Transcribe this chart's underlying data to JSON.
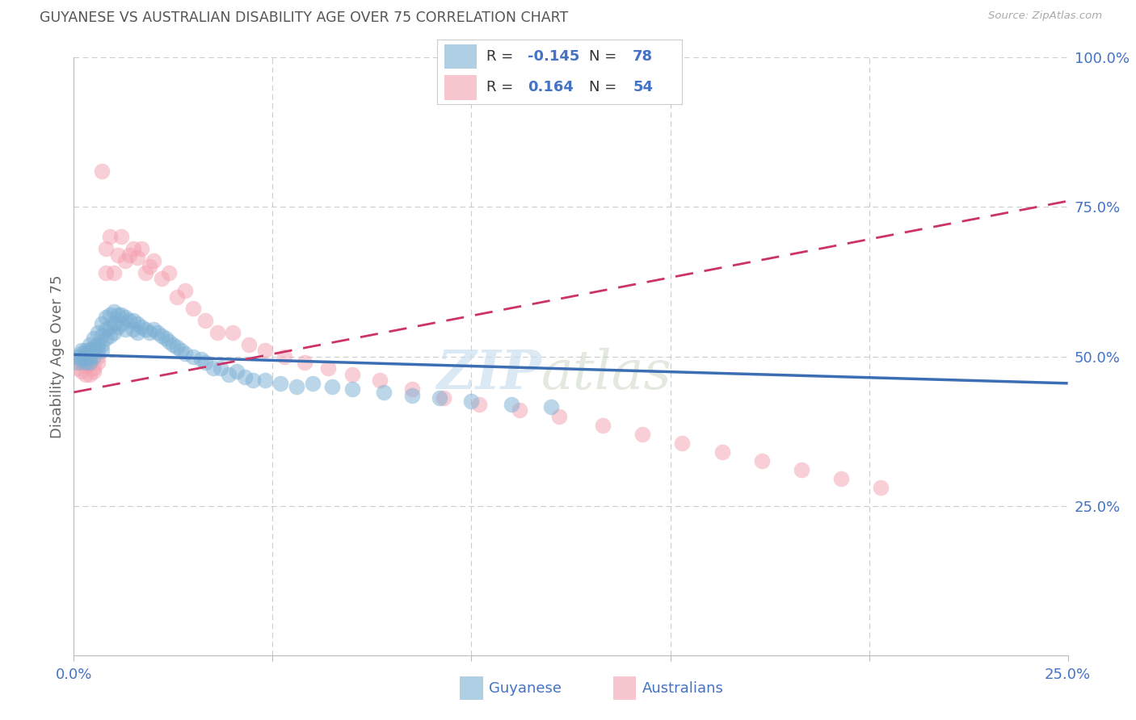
{
  "title": "GUYANESE VS AUSTRALIAN DISABILITY AGE OVER 75 CORRELATION CHART",
  "source": "Source: ZipAtlas.com",
  "ylabel": "Disability Age Over 75",
  "blue_dot_color": "#7bafd4",
  "pink_dot_color": "#f4a0b0",
  "blue_line_color": "#3c6eb4",
  "pink_line_color": "#cc3366",
  "axis_tick_color": "#4472c4",
  "title_color": "#555555",
  "grid_color": "#cccccc",
  "legend_R_color": "#555555",
  "legend_val_color": "#4472c4",
  "xlim": [
    0.0,
    0.25
  ],
  "ylim": [
    0.0,
    1.0
  ],
  "guyanese_x": [
    0.001,
    0.001,
    0.002,
    0.002,
    0.002,
    0.003,
    0.003,
    0.003,
    0.003,
    0.003,
    0.004,
    0.004,
    0.004,
    0.004,
    0.005,
    0.005,
    0.005,
    0.005,
    0.006,
    0.006,
    0.006,
    0.007,
    0.007,
    0.007,
    0.007,
    0.008,
    0.008,
    0.008,
    0.009,
    0.009,
    0.009,
    0.01,
    0.01,
    0.01,
    0.011,
    0.011,
    0.012,
    0.012,
    0.013,
    0.013,
    0.014,
    0.015,
    0.015,
    0.016,
    0.016,
    0.017,
    0.018,
    0.019,
    0.02,
    0.021,
    0.022,
    0.023,
    0.024,
    0.025,
    0.026,
    0.027,
    0.028,
    0.03,
    0.032,
    0.033,
    0.035,
    0.037,
    0.039,
    0.041,
    0.043,
    0.045,
    0.048,
    0.052,
    0.056,
    0.06,
    0.065,
    0.07,
    0.078,
    0.085,
    0.092,
    0.1,
    0.11,
    0.12
  ],
  "guyanese_y": [
    0.5,
    0.49,
    0.505,
    0.495,
    0.51,
    0.505,
    0.495,
    0.5,
    0.51,
    0.49,
    0.52,
    0.5,
    0.51,
    0.49,
    0.53,
    0.515,
    0.5,
    0.51,
    0.54,
    0.52,
    0.51,
    0.555,
    0.535,
    0.52,
    0.51,
    0.565,
    0.545,
    0.53,
    0.57,
    0.55,
    0.535,
    0.575,
    0.555,
    0.54,
    0.57,
    0.55,
    0.57,
    0.555,
    0.565,
    0.545,
    0.56,
    0.56,
    0.545,
    0.555,
    0.54,
    0.55,
    0.545,
    0.54,
    0.545,
    0.54,
    0.535,
    0.53,
    0.525,
    0.52,
    0.515,
    0.51,
    0.505,
    0.5,
    0.495,
    0.49,
    0.48,
    0.48,
    0.47,
    0.475,
    0.465,
    0.46,
    0.46,
    0.455,
    0.45,
    0.455,
    0.45,
    0.445,
    0.44,
    0.435,
    0.43,
    0.425,
    0.42,
    0.415
  ],
  "australians_x": [
    0.001,
    0.002,
    0.002,
    0.003,
    0.003,
    0.004,
    0.004,
    0.005,
    0.005,
    0.006,
    0.006,
    0.007,
    0.008,
    0.008,
    0.009,
    0.01,
    0.011,
    0.012,
    0.013,
    0.014,
    0.015,
    0.016,
    0.017,
    0.018,
    0.019,
    0.02,
    0.022,
    0.024,
    0.026,
    0.028,
    0.03,
    0.033,
    0.036,
    0.04,
    0.044,
    0.048,
    0.053,
    0.058,
    0.064,
    0.07,
    0.077,
    0.085,
    0.093,
    0.102,
    0.112,
    0.122,
    0.133,
    0.143,
    0.153,
    0.163,
    0.173,
    0.183,
    0.193,
    0.203
  ],
  "australians_y": [
    0.48,
    0.475,
    0.49,
    0.47,
    0.485,
    0.47,
    0.49,
    0.48,
    0.475,
    0.49,
    0.5,
    0.81,
    0.64,
    0.68,
    0.7,
    0.64,
    0.67,
    0.7,
    0.66,
    0.67,
    0.68,
    0.665,
    0.68,
    0.64,
    0.65,
    0.66,
    0.63,
    0.64,
    0.6,
    0.61,
    0.58,
    0.56,
    0.54,
    0.54,
    0.52,
    0.51,
    0.5,
    0.49,
    0.48,
    0.47,
    0.46,
    0.445,
    0.43,
    0.42,
    0.41,
    0.4,
    0.385,
    0.37,
    0.355,
    0.34,
    0.325,
    0.31,
    0.295,
    0.28
  ],
  "blue_trendline_x0": 0.0,
  "blue_trendline_y0": 0.503,
  "blue_trendline_x1": 0.25,
  "blue_trendline_y1": 0.455,
  "pink_trendline_x0": 0.0,
  "pink_trendline_y0": 0.44,
  "pink_trendline_x1": 0.25,
  "pink_trendline_y1": 0.76
}
